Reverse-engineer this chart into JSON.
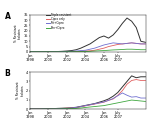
{
  "panel_A": {
    "label": "A",
    "ylim": [
      0,
      35
    ],
    "yticks": [
      0,
      5,
      10,
      15,
      20,
      25,
      30,
      35
    ],
    "series": [
      {
        "name": "Triple resistant",
        "color": "#333333",
        "lw": 0.7,
        "values": [
          0.1,
          0.1,
          0.1,
          0.1,
          0.2,
          0.2,
          0.3,
          0.5,
          0.8,
          1.2,
          2.0,
          3.5,
          5.5,
          7.5,
          10.5,
          13.5,
          15.0,
          13.0,
          16.0,
          21.0,
          27.0,
          32.0,
          29.0,
          23.0,
          10.0,
          9.0
        ]
      },
      {
        "name": "Cipro only",
        "color": "#e06060",
        "lw": 0.6,
        "values": [
          0.05,
          0.05,
          0.05,
          0.05,
          0.05,
          0.1,
          0.1,
          0.1,
          0.15,
          0.2,
          0.3,
          0.5,
          0.8,
          1.0,
          1.5,
          2.5,
          3.5,
          5.0,
          6.0,
          7.0,
          7.5,
          8.0,
          8.5,
          8.0,
          7.5,
          7.5
        ]
      },
      {
        "name": "Tet+Cipro",
        "color": "#7070d0",
        "lw": 0.6,
        "values": [
          0.05,
          0.05,
          0.05,
          0.05,
          0.05,
          0.1,
          0.1,
          0.2,
          0.3,
          0.5,
          0.8,
          1.2,
          1.5,
          2.5,
          3.5,
          5.0,
          6.5,
          7.5,
          8.5,
          8.0,
          7.5,
          8.0,
          8.5,
          8.0,
          7.5,
          7.5
        ]
      },
      {
        "name": "Pen+Cipro",
        "color": "#40a840",
        "lw": 0.6,
        "values": [
          0.0,
          0.0,
          0.0,
          0.0,
          0.0,
          0.0,
          0.0,
          0.0,
          0.05,
          0.1,
          0.1,
          0.2,
          0.3,
          0.5,
          0.8,
          1.0,
          1.2,
          1.5,
          1.8,
          2.0,
          2.2,
          2.5,
          2.5,
          2.3,
          2.0,
          2.0
        ]
      }
    ]
  },
  "panel_B": {
    "label": "B",
    "ylim": [
      0,
      4
    ],
    "yticks": [
      0,
      1,
      2,
      3,
      4
    ],
    "series": [
      {
        "name": "Triple resistant",
        "color": "#333333",
        "lw": 0.7,
        "values": [
          0.02,
          0.02,
          0.02,
          0.03,
          0.05,
          0.05,
          0.08,
          0.1,
          0.12,
          0.15,
          0.2,
          0.3,
          0.4,
          0.5,
          0.6,
          0.75,
          0.9,
          1.1,
          1.4,
          1.8,
          2.4,
          3.0,
          3.6,
          3.4,
          3.5,
          3.5
        ]
      },
      {
        "name": "Cipro only",
        "color": "#e06060",
        "lw": 0.6,
        "values": [
          0.01,
          0.01,
          0.01,
          0.02,
          0.02,
          0.04,
          0.05,
          0.08,
          0.1,
          0.12,
          0.15,
          0.25,
          0.35,
          0.45,
          0.55,
          0.65,
          0.75,
          0.95,
          1.1,
          1.5,
          2.0,
          2.7,
          3.1,
          3.2,
          3.1,
          3.1
        ]
      },
      {
        "name": "Tet+Cipro",
        "color": "#7070d0",
        "lw": 0.6,
        "values": [
          0.01,
          0.01,
          0.01,
          0.02,
          0.02,
          0.03,
          0.04,
          0.05,
          0.08,
          0.12,
          0.18,
          0.28,
          0.38,
          0.48,
          0.58,
          0.68,
          0.78,
          0.95,
          1.15,
          1.45,
          1.75,
          1.5,
          1.3,
          1.35,
          1.2,
          1.2
        ]
      },
      {
        "name": "Pen+Cipro",
        "color": "#40a840",
        "lw": 0.6,
        "values": [
          0.0,
          0.0,
          0.0,
          0.01,
          0.01,
          0.02,
          0.02,
          0.03,
          0.04,
          0.05,
          0.08,
          0.12,
          0.18,
          0.23,
          0.28,
          0.33,
          0.38,
          0.48,
          0.58,
          0.68,
          0.78,
          0.88,
          0.98,
          0.93,
          0.88,
          0.83
        ]
      }
    ]
  },
  "x_tick_positions": [
    0,
    4,
    8,
    12,
    16,
    19
  ],
  "x_labels": [
    "Jan\n1998",
    "Jan\n2000",
    "Jan\n2002",
    "Jan\n2004",
    "Jan\n2006",
    "July\n2007"
  ],
  "n_points": 26
}
